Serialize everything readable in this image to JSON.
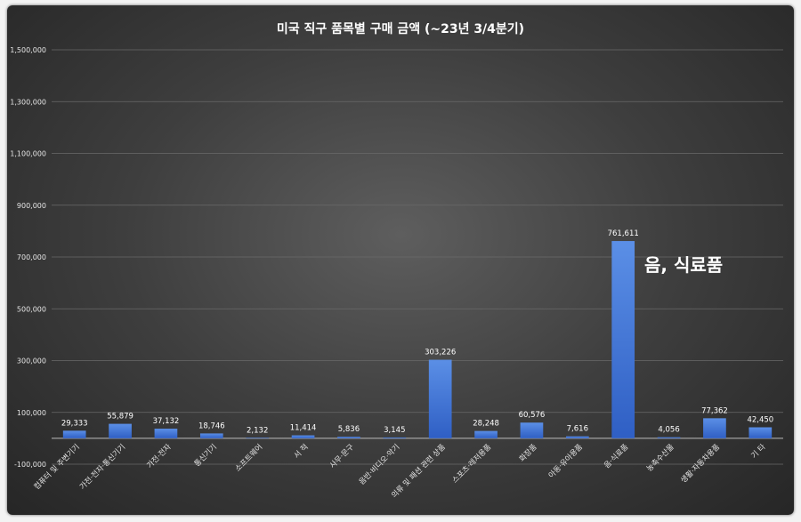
{
  "chart_data": {
    "type": "bar",
    "title": "미국 직구 품목별 구매 금액 (~23년 3/4분기)",
    "categories": [
      "컴퓨터 및 주변기기",
      "가전·전자·통신기기",
      "가전·전자",
      "통신기기",
      "소프트웨어",
      "서 적",
      "사무·문구",
      "음반·비디오·악기",
      "의류 및 패션 관련 상품",
      "스포츠·레저용품",
      "화장품",
      "아동·유아용품",
      "음·식료품",
      "농축수산물",
      "생활·자동차용품",
      "기 타"
    ],
    "values": [
      29333,
      55879,
      37132,
      18746,
      2132,
      11414,
      5836,
      3145,
      303226,
      28248,
      60576,
      7616,
      761611,
      4056,
      77362,
      42450
    ],
    "value_labels": [
      "29,333",
      "55,879",
      "37,132",
      "18,746",
      "2,132",
      "11,414",
      "5,836",
      "3,145",
      "303,226",
      "28,248",
      "60,576",
      "7,616",
      "761,611",
      "4,056",
      "77,362",
      "42,450"
    ],
    "ylim": [
      -100000,
      1500000
    ],
    "yticks": [
      -100000,
      100000,
      300000,
      500000,
      700000,
      900000,
      1100000,
      1300000,
      1500000
    ],
    "ytick_labels": [
      "-100,000",
      "100,000",
      "300,000",
      "500,000",
      "700,000",
      "900,000",
      "1,100,000",
      "1,300,000",
      "1,500,000"
    ],
    "annotation": "음, 식료품",
    "grid": true,
    "colors": {
      "bar_top": "#5b8fe6",
      "bar_bottom": "#2f5fc4"
    }
  }
}
